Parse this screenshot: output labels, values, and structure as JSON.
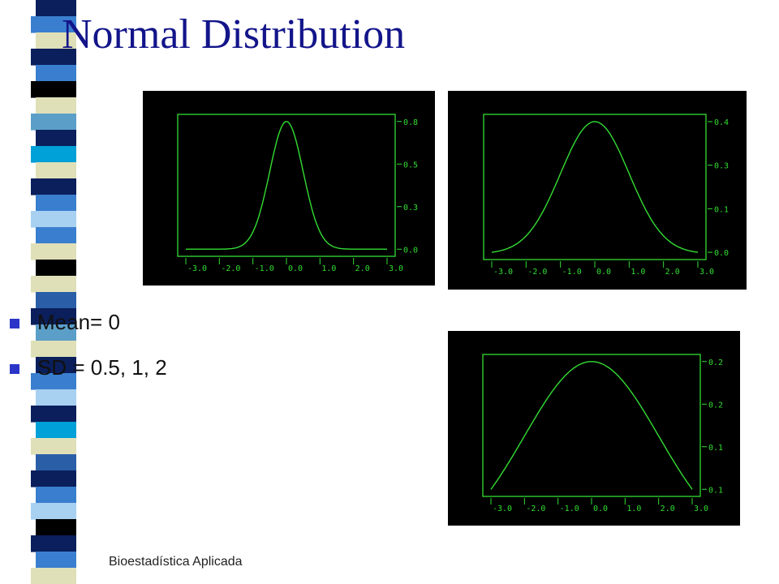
{
  "slide": {
    "title": "Normal Distribution",
    "bullets": [
      "Mean= 0",
      "SD = 0.5, 1, 2"
    ],
    "footer": "Bioestadística Aplicada",
    "colors": {
      "title": "#13158a",
      "bullet_mark": "#2b36c8",
      "plot_line": "#33dd33",
      "plot_background": "#000000"
    },
    "stripe_colors": [
      "#0a1f5c",
      "#3a7fcf",
      "#e0e0b8",
      "#0a1f5c",
      "#3a7fcf",
      "#000000",
      "#e0e0b8",
      "#5b9fc8",
      "#0a1f5c",
      "#00a0d8",
      "#e0e0b8",
      "#0a1f5c",
      "#3a7fcf",
      "#a8d0f0",
      "#3a7fcf",
      "#e0e0b8",
      "#000000",
      "#e0e0b8",
      "#2a5fa8",
      "#0a1f5c",
      "#5b9fc8",
      "#e0e0b8",
      "#0a1f5c",
      "#3a7fcf",
      "#a8d0f0",
      "#0a1f5c",
      "#00a0d8",
      "#e0e0b8",
      "#2a5fa8",
      "#0a1f5c",
      "#3a7fcf",
      "#a8d0f0",
      "#000000",
      "#0a1f5c",
      "#3a7fcf",
      "#e0e0b8"
    ]
  },
  "chart_data": [
    {
      "type": "line",
      "sd": 0.5,
      "x_ticks": [
        "-3.0",
        "-2.0",
        "-1.0",
        "0.0",
        "1.0",
        "2.0",
        "3.0"
      ],
      "y_ticks": [
        "0.0",
        "0.3",
        "0.5",
        "0.8"
      ],
      "xlim": [
        -3,
        3
      ],
      "ylim": [
        0,
        0.8
      ],
      "grid": false
    },
    {
      "type": "line",
      "sd": 1,
      "x_ticks": [
        "-3.0",
        "-2.0",
        "-1.0",
        "0.0",
        "1.0",
        "2.0",
        "3.0"
      ],
      "y_ticks": [
        "0.0",
        "0.1",
        "0.3",
        "0.4"
      ],
      "xlim": [
        -3,
        3
      ],
      "ylim": [
        0,
        0.4
      ],
      "grid": false
    },
    {
      "type": "line",
      "sd": 2,
      "x_ticks": [
        "-3.0",
        "-2.0",
        "-1.0",
        "0.0",
        "1.0",
        "2.0",
        "3.0"
      ],
      "y_ticks": [
        "0.1",
        "0.1",
        "0.2",
        "0.2"
      ],
      "xlim": [
        -3,
        3
      ],
      "ylim": [
        0.06,
        0.2
      ],
      "grid": false
    }
  ]
}
